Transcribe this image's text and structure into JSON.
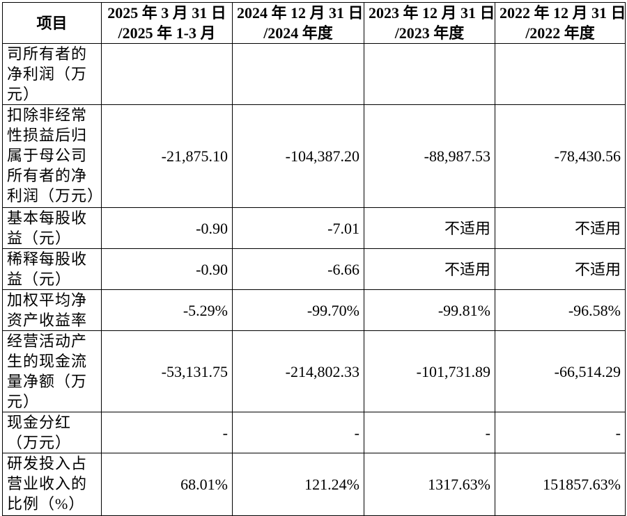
{
  "table": {
    "header": [
      "项目",
      [
        "2025 年 3 月 31 日",
        "/2025 年 1-3 月"
      ],
      [
        "2024 年 12 月 31 日",
        "/2024 年度"
      ],
      [
        "2023 年 12 月 31 日",
        "/2023 年度"
      ],
      [
        "2022 年 12 月 31 日",
        "/2022 年度"
      ]
    ],
    "rows": [
      [
        "司所有者的净利润（万元）",
        "",
        "",
        "",
        ""
      ],
      [
        "扣除非经常性损益后归属于母公司所有者的净利润（万元）",
        "-21,875.10",
        "-104,387.20",
        "-88,987.53",
        "-78,430.56"
      ],
      [
        "基本每股收益（元）",
        "-0.90",
        "-7.01",
        "不适用",
        "不适用"
      ],
      [
        "稀释每股收益（元）",
        "-0.90",
        "-6.66",
        "不适用",
        "不适用"
      ],
      [
        "加权平均净资产收益率",
        "-5.29%",
        "-99.70%",
        "-99.81%",
        "-96.58%"
      ],
      [
        "经营活动产生的现金流量净额（万元）",
        "-53,131.75",
        "-214,802.33",
        "-101,731.89",
        "-66,514.29"
      ],
      [
        "现金分红（万元）",
        "-",
        "-",
        "-",
        "-"
      ],
      [
        "研发投入占营业收入的比例（%）",
        "68.01%",
        "121.24%",
        "1317.63%",
        "151857.63%"
      ]
    ]
  }
}
